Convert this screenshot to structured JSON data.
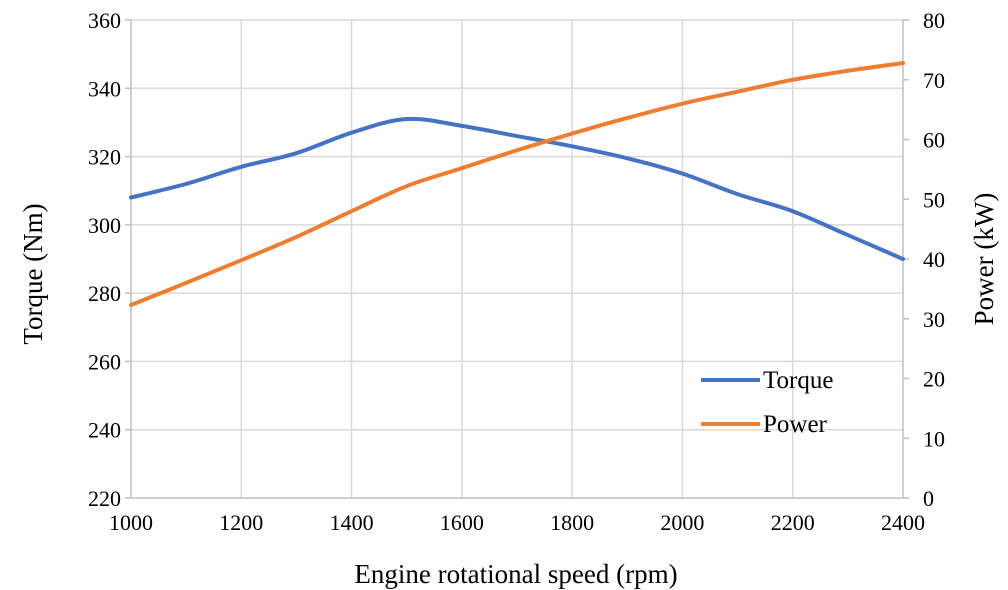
{
  "chart_data": {
    "type": "line",
    "title": "",
    "xlabel": "Engine rotational speed (rpm)",
    "ylabel": "Torque (Nm)",
    "ylabel_right": "Power (kW)",
    "xlim": [
      1000,
      2400
    ],
    "ylim": [
      220,
      360
    ],
    "ylim_right": [
      0,
      80
    ],
    "x_ticks": [
      "1000",
      "1200",
      "1400",
      "1600",
      "1800",
      "2000",
      "2200",
      "2400"
    ],
    "y_ticks": [
      "220",
      "240",
      "260",
      "280",
      "300",
      "320",
      "340",
      "360"
    ],
    "y_ticks_right": [
      "0",
      "10",
      "20",
      "30",
      "40",
      "50",
      "60",
      "70",
      "80"
    ],
    "grid": true,
    "legend_position": "bottom-right",
    "series": [
      {
        "name": "Torque",
        "axis": "left",
        "color": "#4472c4",
        "x": [
          1000,
          1100,
          1200,
          1300,
          1400,
          1500,
          1600,
          1700,
          1800,
          1900,
          2000,
          2100,
          2200,
          2300,
          2400
        ],
        "values": [
          308,
          312,
          317,
          321,
          327,
          331,
          329,
          326,
          323,
          319.5,
          315,
          309,
          304,
          297,
          290
        ]
      },
      {
        "name": "Power",
        "axis": "right",
        "color": "#ed7d31",
        "x": [
          1000,
          1100,
          1200,
          1300,
          1400,
          1500,
          1600,
          1700,
          1800,
          1900,
          2000,
          2100,
          2200,
          2300,
          2400
        ],
        "values": [
          32.3,
          36.0,
          39.8,
          43.7,
          48.0,
          52.2,
          55.2,
          58.2,
          61.0,
          63.6,
          66.0,
          68.0,
          70.0,
          71.5,
          72.8
        ]
      }
    ]
  }
}
